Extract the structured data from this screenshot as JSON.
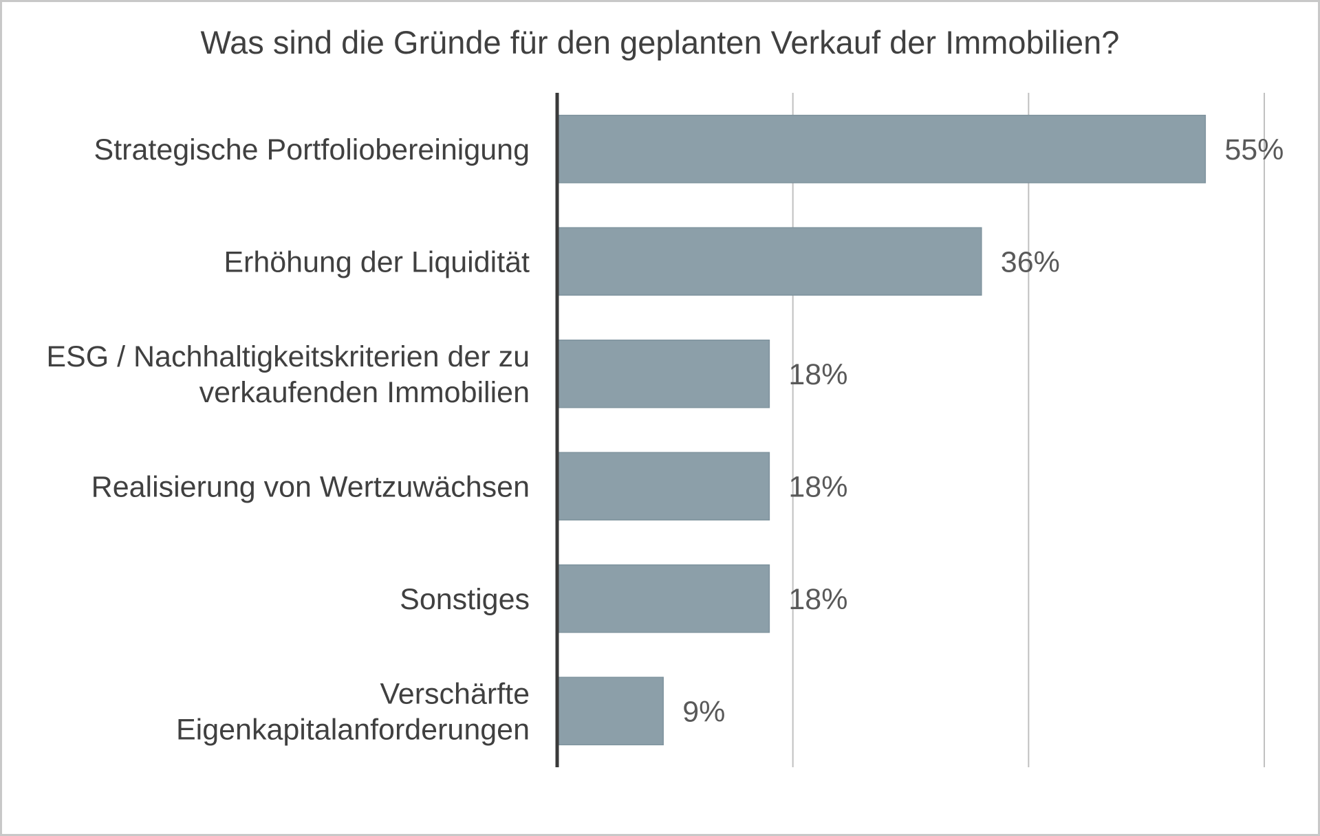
{
  "chart_data": {
    "type": "bar",
    "orientation": "horizontal",
    "title": "Was sind die Gründe für den geplanten Verkauf der Immobilien?",
    "xlabel": "",
    "ylabel": "",
    "categories": [
      "Strategische Portfoliobereinigung",
      "Erhöhung der Liquidität",
      "ESG / Nachhaltigkeitskriterien der zu verkaufenden Immobilien",
      "Realisierung von Wertzuwächsen",
      "Sonstiges",
      "Verschärfte Eigenkapitalanforderungen"
    ],
    "category_lines": [
      [
        "Strategische Portfoliobereinigung"
      ],
      [
        "Erhöhung der Liquidität"
      ],
      [
        "ESG / Nachhaltigkeitskriterien der zu",
        "verkaufenden Immobilien"
      ],
      [
        "Realisierung von Wertzuwächsen"
      ],
      [
        "Sonstiges"
      ],
      [
        "Verschärfte",
        "Eigenkapitalanforderungen"
      ]
    ],
    "values": [
      55,
      36,
      18,
      18,
      18,
      9
    ],
    "value_labels": [
      "55%",
      "36%",
      "18%",
      "18%",
      "18%",
      "9%"
    ],
    "xlim": [
      0,
      60
    ],
    "gridlines": [
      20,
      40,
      60
    ],
    "grid": true,
    "legend": "none",
    "colors": {
      "bar": "#8c9fa9",
      "bar_edge": "#7f939e",
      "axis": "#3a3a3a",
      "grid": "#c0c0c0",
      "category_text": "#404040",
      "value_text": "#595959",
      "title_text": "#404040"
    }
  }
}
